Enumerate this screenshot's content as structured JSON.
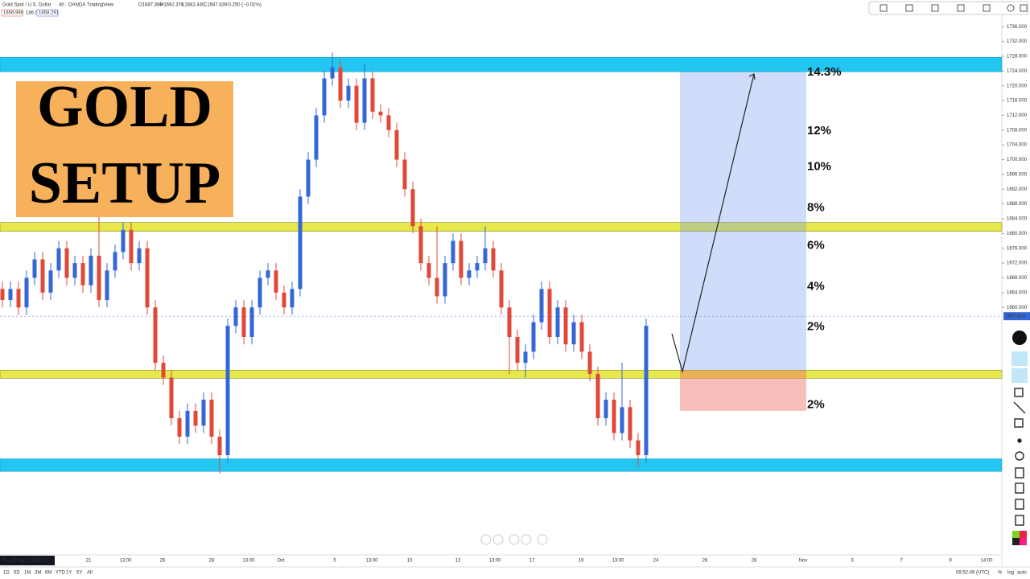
{
  "header": {
    "symbol": "Gold Spot / U.S. Dollar",
    "interval": "4h",
    "broker": "OANDA",
    "platform": "TradingView",
    "ohlc": [
      "O1687.380",
      "H1692.370",
      "L1682.440",
      "C1687.630",
      "−0.250 (−0.01%)"
    ],
    "quotes": [
      "1656.990",
      "186.0",
      "1658.291"
    ]
  },
  "chart_data": {
    "type": "candlestick",
    "title_lines": [
      "GOLD",
      "SETUP"
    ],
    "up_color": "#3567d6",
    "down_color": "#e0483a",
    "open": [
      1665,
      1662,
      1665,
      1660,
      1668,
      1673,
      1664,
      1670,
      1676,
      1668,
      1672,
      1666,
      1674,
      1662,
      1670,
      1675,
      1681,
      1672,
      1676,
      1660,
      1645,
      1641,
      1630,
      1625,
      1632,
      1628,
      1635,
      1625,
      1620,
      1655,
      1660,
      1652,
      1660,
      1668,
      1670,
      1664,
      1660,
      1665,
      1690,
      1700,
      1712,
      1722,
      1725,
      1716,
      1720,
      1710,
      1722,
      1713,
      1712,
      1708,
      1700,
      1692,
      1682,
      1672,
      1668,
      1663,
      1672,
      1678,
      1668,
      1670,
      1672,
      1676,
      1670,
      1660,
      1652,
      1645,
      1648,
      1656,
      1665,
      1652,
      1660,
      1650,
      1656,
      1648,
      1642,
      1630,
      1635,
      1626,
      1633,
      1624,
      1620
    ],
    "high": [
      1667,
      1667,
      1667,
      1670,
      1675,
      1675,
      1672,
      1678,
      1678,
      1674,
      1674,
      1676,
      1686,
      1672,
      1677,
      1683,
      1683,
      1678,
      1678,
      1662,
      1647,
      1643,
      1632,
      1634,
      1634,
      1637,
      1637,
      1627,
      1657,
      1662,
      1662,
      1662,
      1670,
      1672,
      1672,
      1666,
      1667,
      1692,
      1702,
      1714,
      1724,
      1729,
      1727,
      1722,
      1722,
      1726,
      1724,
      1715,
      1714,
      1710,
      1702,
      1694,
      1684,
      1674,
      1682,
      1674,
      1680,
      1680,
      1672,
      1674,
      1682,
      1678,
      1672,
      1662,
      1654,
      1650,
      1658,
      1667,
      1667,
      1662,
      1662,
      1658,
      1658,
      1650,
      1644,
      1637,
      1637,
      1645,
      1635,
      1626,
      1657
    ],
    "low": [
      1660,
      1660,
      1658,
      1658,
      1666,
      1662,
      1662,
      1668,
      1666,
      1666,
      1664,
      1664,
      1660,
      1660,
      1668,
      1673,
      1670,
      1670,
      1658,
      1643,
      1639,
      1628,
      1623,
      1623,
      1626,
      1626,
      1623,
      1615,
      1618,
      1653,
      1650,
      1650,
      1658,
      1666,
      1662,
      1658,
      1658,
      1663,
      1688,
      1698,
      1710,
      1720,
      1714,
      1714,
      1708,
      1708,
      1711,
      1710,
      1706,
      1698,
      1690,
      1680,
      1670,
      1666,
      1661,
      1661,
      1670,
      1666,
      1666,
      1668,
      1670,
      1668,
      1658,
      1642,
      1643,
      1641,
      1646,
      1654,
      1650,
      1650,
      1648,
      1648,
      1646,
      1640,
      1628,
      1628,
      1624,
      1624,
      1622,
      1617,
      1618
    ],
    "close": [
      1662,
      1665,
      1660,
      1668,
      1673,
      1664,
      1670,
      1676,
      1668,
      1672,
      1666,
      1674,
      1662,
      1670,
      1675,
      1681,
      1672,
      1676,
      1660,
      1645,
      1641,
      1630,
      1625,
      1632,
      1628,
      1635,
      1625,
      1620,
      1655,
      1660,
      1652,
      1660,
      1668,
      1670,
      1664,
      1660,
      1665,
      1690,
      1700,
      1712,
      1722,
      1725,
      1716,
      1720,
      1710,
      1722,
      1713,
      1712,
      1708,
      1700,
      1692,
      1682,
      1672,
      1668,
      1663,
      1672,
      1678,
      1668,
      1670,
      1672,
      1676,
      1670,
      1660,
      1652,
      1645,
      1648,
      1656,
      1665,
      1652,
      1660,
      1650,
      1656,
      1648,
      1642,
      1630,
      1635,
      1626,
      1633,
      1624,
      1620,
      1655
    ],
    "ylim": [
      1593,
      1738
    ],
    "yticks": [
      {
        "value": 1736,
        "label": "1736.000"
      },
      {
        "value": 1732,
        "label": "1732.000"
      },
      {
        "value": 1728,
        "label": "1728.000"
      },
      {
        "value": 1724,
        "label": "1724.000"
      },
      {
        "value": 1720,
        "label": "1720.000"
      },
      {
        "value": 1716,
        "label": "1716.000"
      },
      {
        "value": 1712,
        "label": "1712.000"
      },
      {
        "value": 1708,
        "label": "1708.000"
      },
      {
        "value": 1704,
        "label": "1704.000"
      },
      {
        "value": 1700,
        "label": "1700.000"
      },
      {
        "value": 1696,
        "label": "1696.000"
      },
      {
        "value": 1692,
        "label": "1692.000"
      },
      {
        "value": 1688,
        "label": "1688.000"
      },
      {
        "value": 1684,
        "label": "1684.000"
      },
      {
        "value": 1680,
        "label": "1680.000"
      },
      {
        "value": 1676,
        "label": "1676.000"
      },
      {
        "value": 1672,
        "label": "1672.000"
      },
      {
        "value": 1668,
        "label": "1668.000"
      },
      {
        "value": 1664,
        "label": "1664.000"
      },
      {
        "value": 1660,
        "label": "1660.000"
      }
    ],
    "last_price": {
      "value": 1657.62,
      "label": "1657.620"
    },
    "zones": [
      {
        "low": 1723.8,
        "high": 1727.7,
        "color": "#22c6f0"
      },
      {
        "low": 1680.6,
        "high": 1683,
        "color": "#e6e84c"
      },
      {
        "low": 1640.8,
        "high": 1643,
        "color": "#e6e84c"
      },
      {
        "low": 1615.6,
        "high": 1619,
        "color": "#22c6f0"
      }
    ],
    "position": {
      "target": 1723.8,
      "entry": 1643,
      "stop": 1632
    },
    "annotations": [
      {
        "text": "14.3%",
        "price": 1723.6
      },
      {
        "text": "12%",
        "price": 1707.7
      },
      {
        "text": "10%",
        "price": 1698
      },
      {
        "text": "8%",
        "price": 1686.9
      },
      {
        "text": "6%",
        "price": 1676.7
      },
      {
        "text": "4%",
        "price": 1665.6
      },
      {
        "text": "2%",
        "price": 1654.7
      },
      {
        "text": "2%",
        "price": 1633.6
      }
    ],
    "x_axis_labels": [
      "Thu 15 Sep '22  09:00",
      "21",
      "13:00",
      "26",
      "28",
      "13:00",
      "Oct",
      "5",
      "13:00",
      "10",
      "12",
      "13:00",
      "17",
      "19",
      "13:00",
      "24",
      "26",
      "28",
      "Nov",
      "3",
      "7",
      "9",
      "14:00"
    ]
  },
  "footer": {
    "ranges": [
      "1D",
      "5D",
      "1M",
      "3M",
      "6M",
      "YTD",
      "1Y",
      "5Y",
      "All"
    ],
    "clock": "09:52:49 (UTC)",
    "toggles": [
      "%",
      "log",
      "auto"
    ]
  }
}
